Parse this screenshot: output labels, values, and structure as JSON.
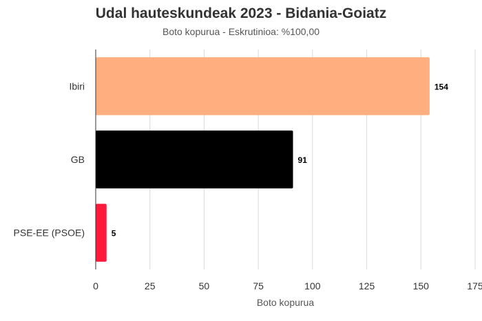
{
  "chart_data": {
    "type": "bar",
    "orientation": "horizontal",
    "title": "Udal hauteskundeak 2023 - Bidania-Goiatz",
    "subtitle": "Boto kopurua - Eskrutinioa: %100,00",
    "xlabel": "Boto kopurua",
    "ylabel": "",
    "xlim": [
      0,
      175
    ],
    "xticks": [
      0,
      25,
      50,
      75,
      100,
      125,
      150,
      175
    ],
    "grid": true,
    "categories": [
      "Ibiri",
      "GB",
      "PSE-EE (PSOE)"
    ],
    "values": [
      154,
      91,
      5
    ],
    "colors": [
      "#FFAF7F",
      "#000000",
      "#FF1A3C"
    ]
  }
}
